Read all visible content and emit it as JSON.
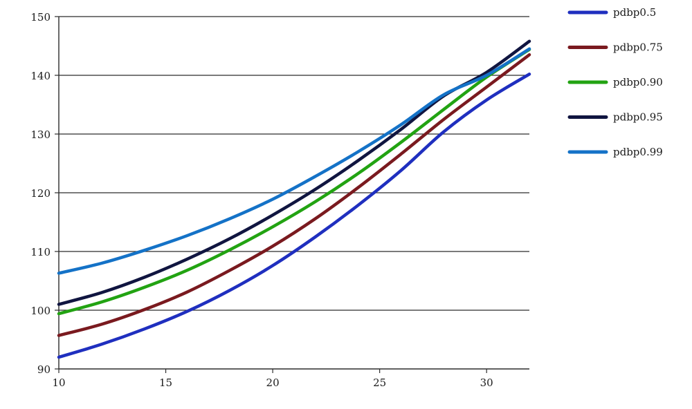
{
  "chart_data": {
    "type": "line",
    "title": "",
    "xlabel": "",
    "ylabel": "",
    "xlim": [
      10,
      32
    ],
    "ylim": [
      90,
      150
    ],
    "x_ticks": [
      10,
      15,
      20,
      25,
      30
    ],
    "y_ticks": [
      90,
      100,
      110,
      120,
      130,
      140,
      150
    ],
    "grid": "horizontal",
    "legend_position": "top-right",
    "x": [
      10,
      12,
      14,
      16,
      18,
      20,
      22,
      24,
      26,
      28,
      30,
      32
    ],
    "series": [
      {
        "name": "pdbp0.5",
        "color": "#1f2fbf",
        "values": [
          92.0,
          94.2,
          96.8,
          99.8,
          103.4,
          107.6,
          112.5,
          117.9,
          123.8,
          130.4,
          135.8,
          140.2
        ]
      },
      {
        "name": "pdbp0.75",
        "color": "#7a1a1f",
        "values": [
          95.7,
          97.6,
          100.1,
          103.1,
          106.8,
          110.9,
          115.6,
          120.9,
          126.6,
          132.5,
          138.0,
          143.5
        ]
      },
      {
        "name": "pdbp0.90",
        "color": "#22a312",
        "values": [
          99.4,
          101.4,
          103.9,
          106.8,
          110.3,
          114.2,
          118.5,
          123.3,
          128.6,
          134.2,
          139.7,
          144.4
        ]
      },
      {
        "name": "pdbp0.95",
        "color": "#101540",
        "values": [
          101.0,
          103.0,
          105.6,
          108.7,
          112.2,
          116.2,
          120.6,
          125.5,
          130.8,
          136.5,
          140.5,
          145.8
        ]
      },
      {
        "name": "pdbp0.99",
        "color": "#1472c7",
        "values": [
          106.3,
          108.0,
          110.2,
          112.7,
          115.6,
          118.9,
          122.8,
          127.0,
          131.6,
          136.7,
          140.0,
          144.5
        ]
      }
    ]
  }
}
